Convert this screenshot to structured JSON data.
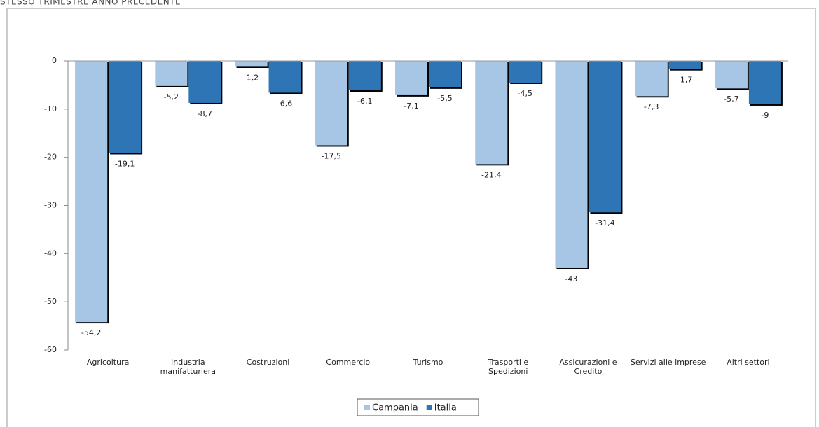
{
  "chart_data": {
    "type": "bar",
    "title": "STESSO TRIMESTRE ANNO PRECEDENTE",
    "categories": [
      "Agricoltura",
      "Industria manifatturiera",
      "Costruzioni",
      "Commercio",
      "Turismo",
      "Trasporti e Spedizioni",
      "Assicurazioni e Credito",
      "Servizi alle imprese",
      "Altri settori"
    ],
    "series": [
      {
        "name": "Campania",
        "color": "#a7c5e5",
        "values": [
          -54.2,
          -5.2,
          -1.2,
          -17.5,
          -7.1,
          -21.4,
          -43,
          -7.3,
          -5.7
        ],
        "value_labels": [
          "-54,2",
          "-5,2",
          "-1,2",
          "-17,5",
          "-7,1",
          "-21,4",
          "-43",
          "-7,3",
          "-5,7"
        ]
      },
      {
        "name": "Italia",
        "color": "#2e75b6",
        "values": [
          -19.1,
          -8.7,
          -6.6,
          -6.1,
          -5.5,
          -4.5,
          -31.4,
          -1.7,
          -9
        ],
        "value_labels": [
          "-19,1",
          "-8,7",
          "-6,6",
          "-6,1",
          "-5,5",
          "-4,5",
          "-31,4",
          "-1,7",
          "-9"
        ]
      }
    ],
    "ylim": [
      -60,
      0
    ],
    "yticks": [
      0,
      -10,
      -20,
      -30,
      -40,
      -50,
      -60
    ],
    "legend": "bottom"
  }
}
